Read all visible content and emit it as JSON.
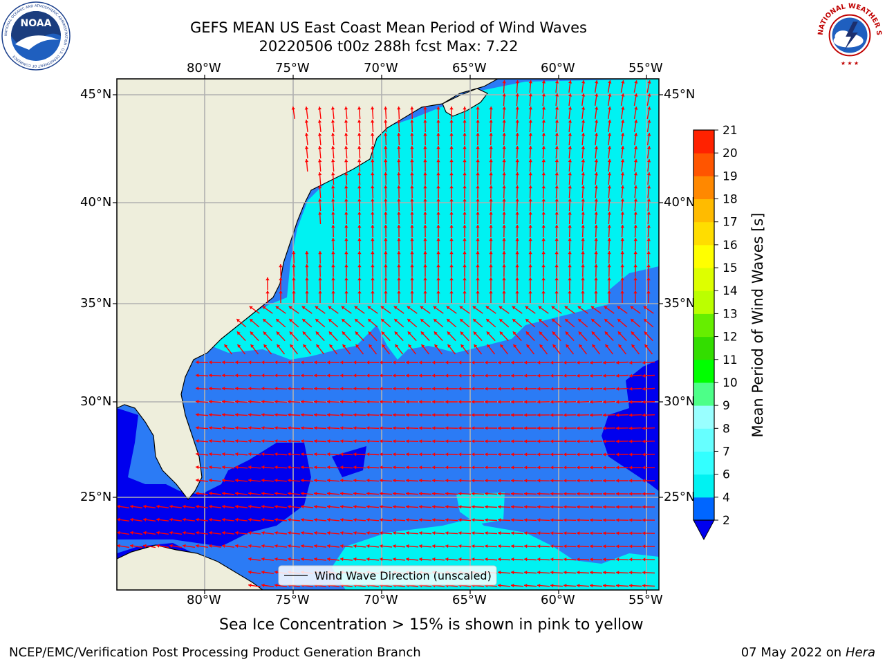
{
  "title": {
    "line1": "GEFS MEAN US East Coast Mean Period of Wind Waves",
    "line2": "20220506 t00z 288h fcst   Max: 7.22"
  },
  "axes": {
    "lon_ticks": [
      "80°W",
      "75°W",
      "70°W",
      "65°W",
      "60°W",
      "55°W"
    ],
    "lat_ticks": [
      "45°N",
      "40°N",
      "35°N",
      "30°N",
      "25°N"
    ],
    "lon_range": [
      -85,
      -54.3
    ],
    "lat_range": [
      20.5,
      46.2
    ]
  },
  "legend": {
    "label": "Wind Wave Direction (unscaled)"
  },
  "colorbar": {
    "label": "Mean Period of Wind Waves [s]",
    "ticks": [
      "2",
      "4",
      "6",
      "7",
      "8",
      "9",
      "10",
      "11",
      "12",
      "13",
      "14",
      "15",
      "16",
      "17",
      "18",
      "19",
      "20",
      "21"
    ],
    "colors": [
      "#0066ff",
      "#00f2f2",
      "#33ffff",
      "#66ffff",
      "#99ffff",
      "#4dff88",
      "#00ff00",
      "#33dd00",
      "#66ee00",
      "#bbff00",
      "#ddff00",
      "#ffff00",
      "#ffdd00",
      "#ffbb00",
      "#ff8800",
      "#ff5500",
      "#ff2200"
    ],
    "under_color": "#0000ee"
  },
  "map_colors": {
    "land": "#eeeedc",
    "dark_blue": "#0000ee",
    "mid_blue": "#2b7bf5",
    "cyan": "#00f2f2",
    "arrow": "#ff0000",
    "grid": "#b0b0b0"
  },
  "caption": "Sea Ice Concentration > 15% is shown in pink to yellow",
  "footer_left": "NCEP/EMC/Verification Post Processing Product Generation Branch",
  "footer_right_date": "07 May 2022 on",
  "footer_right_machine": "Hera",
  "logos": {
    "noaa": {
      "name": "NOAA",
      "ring_text": "NATIONAL OCEANIC AND ATMOSPHERIC ADMINISTRATION · U.S. DEPARTMENT OF COMMERCE"
    },
    "nws": {
      "ring_text": "NATIONAL WEATHER SERVICE"
    }
  }
}
